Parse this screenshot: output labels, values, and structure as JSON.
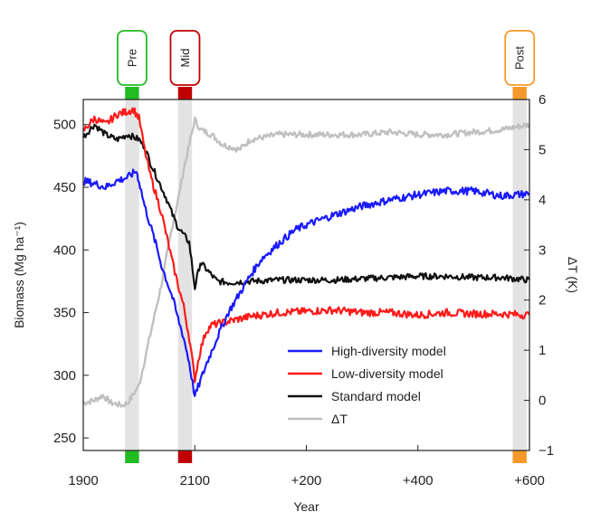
{
  "chart_data": {
    "type": "line",
    "xlabel": "Year",
    "ylabel": "Biomass (Mg ha⁻¹)",
    "y2label": "ΔT (K)",
    "xlim": [
      1900,
      2700
    ],
    "ylim": [
      240,
      520
    ],
    "y2lim": [
      -1,
      6
    ],
    "x_ticks": [
      1900,
      2100,
      2300,
      2500,
      2700
    ],
    "x_tick_labels": [
      "1900",
      "2100",
      "+200",
      "+400",
      "+600"
    ],
    "y_ticks": [
      250,
      300,
      350,
      400,
      450,
      500
    ],
    "y2_ticks": [
      -1,
      0,
      1,
      2,
      3,
      4,
      5,
      6
    ],
    "phases": [
      {
        "label": "Pre",
        "start": 1975,
        "end": 2000,
        "color": "#22bb22"
      },
      {
        "label": "Mid",
        "start": 2070,
        "end": 2095,
        "color": "#c00000"
      },
      {
        "label": "Post",
        "start": 2670,
        "end": 2695,
        "color": "#f59a2a"
      }
    ],
    "series": [
      {
        "name": "High-diversity model",
        "color": "#1a1aff",
        "axis": "left",
        "noise": 3,
        "x": [
          1900,
          1920,
          1940,
          1960,
          1980,
          1995,
          2000,
          2010,
          2020,
          2030,
          2040,
          2050,
          2060,
          2070,
          2080,
          2090,
          2100,
          2120,
          2140,
          2160,
          2180,
          2200,
          2220,
          2250,
          2280,
          2300,
          2350,
          2400,
          2450,
          2500,
          2550,
          2600,
          2650,
          2700
        ],
        "y": [
          455,
          453,
          450,
          455,
          458,
          463,
          455,
          435,
          420,
          405,
          388,
          375,
          362,
          345,
          330,
          310,
          283,
          308,
          330,
          350,
          365,
          380,
          393,
          405,
          416,
          420,
          428,
          435,
          440,
          444,
          447,
          447,
          443,
          445
        ]
      },
      {
        "name": "Low-diversity model",
        "color": "#ff1a1a",
        "axis": "left",
        "noise": 3,
        "x": [
          1900,
          1920,
          1940,
          1960,
          1975,
          1990,
          2000,
          2010,
          2020,
          2030,
          2040,
          2050,
          2060,
          2070,
          2080,
          2090,
          2100,
          2110,
          2120,
          2130,
          2150,
          2200,
          2250,
          2300,
          2350,
          2400,
          2450,
          2500,
          2550,
          2600,
          2650,
          2700
        ],
        "y": [
          495,
          505,
          500,
          508,
          510,
          512,
          505,
          480,
          460,
          445,
          430,
          410,
          390,
          372,
          355,
          330,
          297,
          320,
          335,
          340,
          342,
          347,
          350,
          351,
          352,
          350,
          350,
          348,
          350,
          349,
          349,
          348
        ]
      },
      {
        "name": "Standard model",
        "color": "#111111",
        "axis": "left",
        "noise": 2.5,
        "x": [
          1900,
          1920,
          1940,
          1960,
          1980,
          2000,
          2010,
          2020,
          2030,
          2040,
          2050,
          2060,
          2070,
          2080,
          2090,
          2100,
          2110,
          2120,
          2140,
          2160,
          2200,
          2250,
          2300,
          2350,
          2400,
          2450,
          2500,
          2550,
          2600,
          2650,
          2700
        ],
        "y": [
          490,
          500,
          492,
          488,
          492,
          488,
          482,
          470,
          460,
          450,
          440,
          428,
          418,
          412,
          406,
          370,
          390,
          385,
          375,
          374,
          375,
          376,
          376,
          376,
          377,
          378,
          379,
          379,
          378,
          378,
          376
        ]
      },
      {
        "name": "ΔT",
        "color": "#c0c0c0",
        "axis": "right",
        "noise": 0.06,
        "x": [
          1900,
          1920,
          1935,
          1950,
          1970,
          1980,
          2000,
          2010,
          2020,
          2030,
          2040,
          2050,
          2060,
          2070,
          2080,
          2090,
          2100,
          2110,
          2130,
          2150,
          2180,
          2200,
          2250,
          2300,
          2350,
          2400,
          2450,
          2500,
          2550,
          2600,
          2650,
          2700
        ],
        "y": [
          -0.05,
          0.0,
          0.1,
          -0.05,
          -0.1,
          -0.05,
          0.3,
          0.8,
          1.3,
          1.8,
          2.3,
          2.9,
          3.5,
          4.0,
          4.6,
          5.1,
          5.6,
          5.4,
          5.3,
          5.1,
          5.0,
          5.2,
          5.3,
          5.3,
          5.3,
          5.3,
          5.35,
          5.3,
          5.3,
          5.35,
          5.4,
          5.5
        ]
      }
    ],
    "legend_position": "lower-right",
    "grid": false
  }
}
